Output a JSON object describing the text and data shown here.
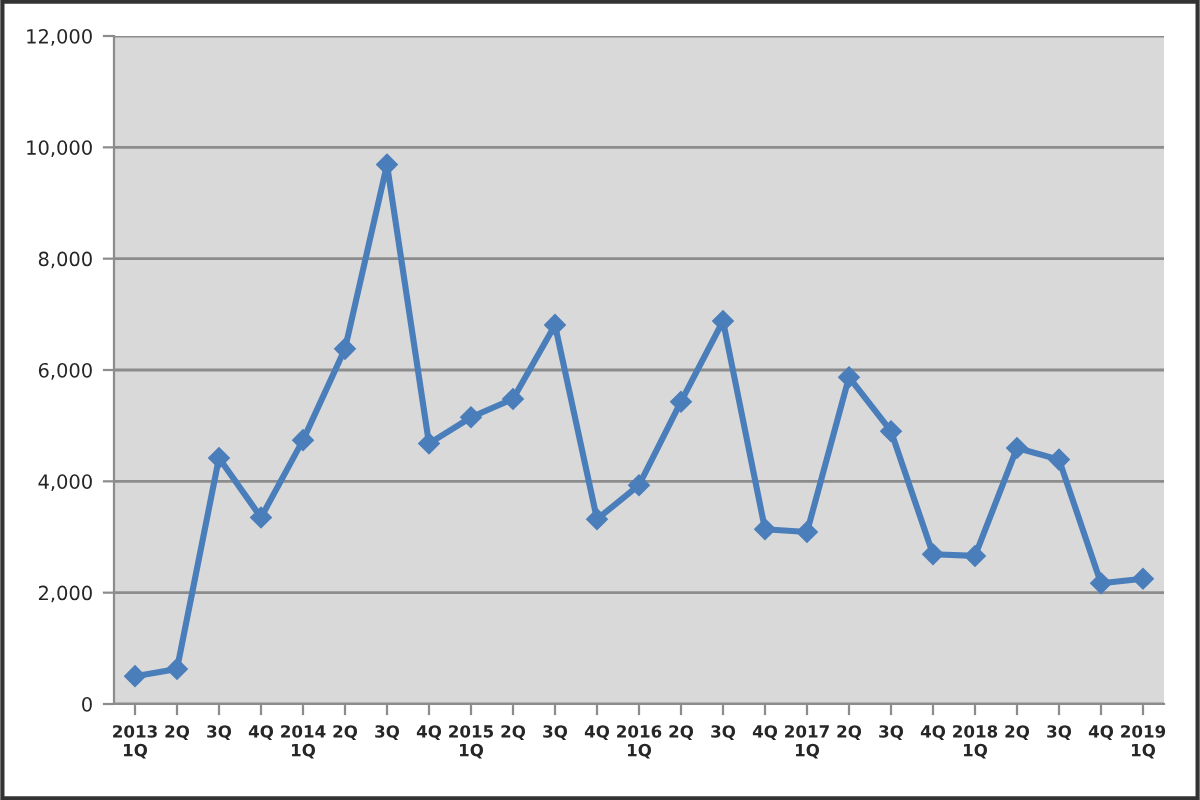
{
  "chart_data": {
    "type": "line",
    "categories": [
      "2013\n1Q",
      "2Q",
      "3Q",
      "4Q",
      "2014\n1Q",
      "2Q",
      "3Q",
      "4Q",
      "2015\n1Q",
      "2Q",
      "3Q",
      "4Q",
      "2016\n1Q",
      "2Q",
      "3Q",
      "4Q",
      "2017\n1Q",
      "2Q",
      "3Q",
      "4Q",
      "2018\n1Q",
      "2Q",
      "3Q",
      "4Q",
      "2019\n1Q"
    ],
    "series": [
      {
        "color": "#4a7ebb",
        "values": [
          500,
          630,
          4420,
          3350,
          4740,
          6380,
          9690,
          4680,
          5150,
          5480,
          6810,
          3320,
          3930,
          5430,
          6880,
          3140,
          3090,
          5870,
          4900,
          2690,
          2660,
          4600,
          4390,
          2170,
          2250
        ]
      }
    ],
    "ylim": [
      0,
      12000
    ],
    "yticks": [
      {
        "value": 0,
        "label": "0"
      },
      {
        "value": 2000,
        "label": "2,000"
      },
      {
        "value": 4000,
        "label": "4,000"
      },
      {
        "value": 6000,
        "label": "6,000"
      },
      {
        "value": 8000,
        "label": "8,000"
      },
      {
        "value": 10000,
        "label": "10,000"
      },
      {
        "value": 12000,
        "label": "12,000"
      }
    ],
    "grid": "y",
    "marker": "diamond",
    "line_style": "solid"
  }
}
